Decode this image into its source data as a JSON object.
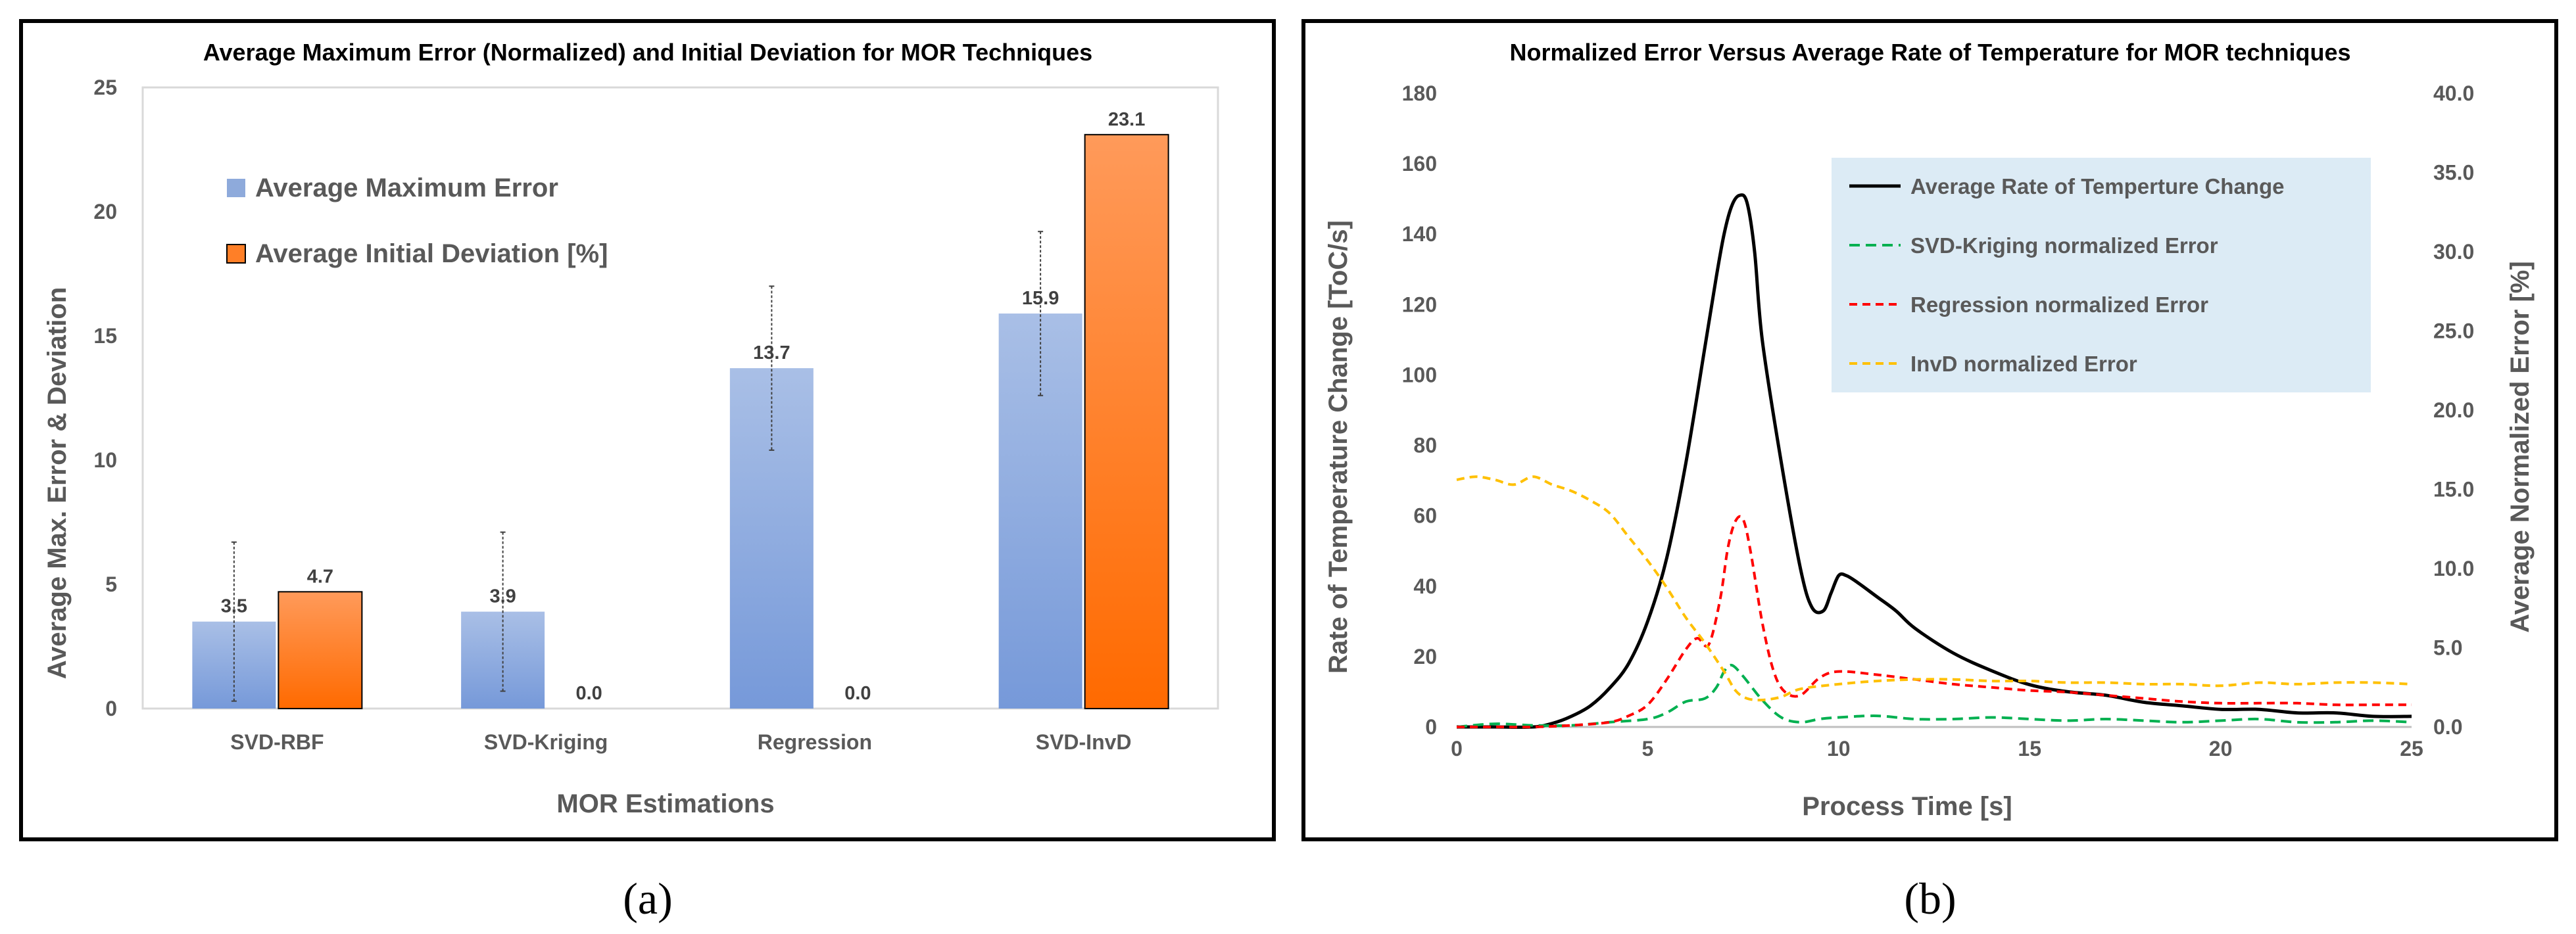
{
  "panel_captions": [
    "(a)",
    "(b)"
  ],
  "chart_data": [
    {
      "type": "bar",
      "title": "Average Maximum Error (Normalized) and Initial Deviation for MOR Techniques",
      "xlabel": "MOR Estimations",
      "ylabel": "Average Max. Error & Deviation",
      "categories": [
        "SVD-RBF",
        "SVD-Kriging",
        "Regression",
        "SVD-InvD"
      ],
      "ylim": [
        0,
        25
      ],
      "yticks": [
        "0",
        "5",
        "10",
        "15",
        "20",
        "25"
      ],
      "grid": false,
      "legend_position": "top-left",
      "series": [
        {
          "name": "Average Maximum Error",
          "values": [
            3.5,
            3.9,
            13.7,
            15.9
          ],
          "labels": [
            "3.5",
            "3.9",
            "13.7",
            "15.9"
          ],
          "error": [
            3.2,
            3.2,
            3.3,
            3.3
          ],
          "color": "#8eaadb"
        },
        {
          "name": "Average Initial Deviation [%]",
          "values": [
            4.7,
            0.0,
            0.0,
            23.1
          ],
          "labels": [
            "4.7",
            "0.0",
            "0.0",
            "23.1"
          ],
          "color": "#ff7f27"
        }
      ]
    },
    {
      "type": "line",
      "title": "Normalized Error Versus Average Rate of Temperature for MOR techniques",
      "xlabel": "Process Time [s]",
      "ylabel": "Rate of Temperature Change [ToC/s]",
      "y2label": "Average Normalized Error [%]",
      "xlim": [
        0,
        25
      ],
      "ylim": [
        0,
        180
      ],
      "y2lim": [
        0,
        40
      ],
      "xticks": [
        "0",
        "5",
        "10",
        "15",
        "20",
        "25"
      ],
      "yticks": [
        "0",
        "20",
        "40",
        "60",
        "80",
        "100",
        "120",
        "140",
        "160",
        "180"
      ],
      "y2ticks": [
        "0.0",
        "5.0",
        "10.0",
        "15.0",
        "20.0",
        "25.0",
        "30.0",
        "35.0",
        "40.0"
      ],
      "legend_position": "top-right",
      "series": [
        {
          "name": "Average Rate of Temperture Change",
          "axis": "left",
          "color": "#000000",
          "style": "solid",
          "x": [
            0,
            1,
            2,
            2.5,
            3,
            3.5,
            4,
            4.5,
            5,
            5.5,
            6,
            6.5,
            6.8,
            7,
            7.2,
            7.4,
            7.6,
            7.8,
            8,
            8.5,
            9,
            9.3,
            9.6,
            9.8,
            10,
            10.2,
            10.5,
            11,
            11.5,
            12,
            13,
            14,
            15,
            16,
            17,
            18,
            19,
            20,
            21,
            22,
            23,
            24,
            25
          ],
          "y": [
            0,
            0,
            0,
            1,
            3,
            6,
            11,
            18,
            30,
            48,
            75,
            108,
            128,
            140,
            148,
            151,
            149,
            135,
            110,
            75,
            45,
            34,
            33,
            38,
            43,
            43,
            41,
            37,
            33,
            28,
            21,
            16,
            12,
            10,
            9,
            7,
            6,
            5,
            5,
            4,
            4,
            3,
            3
          ]
        },
        {
          "name": "SVD-Kriging normalized Error",
          "axis": "right",
          "color": "#00b050",
          "style": "dashed",
          "x": [
            0,
            1,
            2,
            3,
            4,
            5,
            5.5,
            6,
            6.5,
            6.8,
            7,
            7.2,
            7.5,
            8,
            8.5,
            9,
            9.5,
            10,
            11,
            12,
            13,
            14,
            15,
            16,
            17,
            18,
            19,
            20,
            21,
            22,
            23,
            24,
            25
          ],
          "y": [
            0,
            0.2,
            0.1,
            0.1,
            0.3,
            0.5,
            0.9,
            1.6,
            1.8,
            2.5,
            3.5,
            3.9,
            3.2,
            1.7,
            0.6,
            0.3,
            0.5,
            0.6,
            0.7,
            0.5,
            0.5,
            0.6,
            0.5,
            0.4,
            0.5,
            0.4,
            0.3,
            0.4,
            0.5,
            0.3,
            0.3,
            0.4,
            0.3
          ]
        },
        {
          "name": "Regression normalized Error",
          "axis": "right",
          "color": "#ff0000",
          "style": "dashed",
          "x": [
            0,
            1,
            2,
            3,
            4,
            4.5,
            5,
            5.5,
            6,
            6.3,
            6.6,
            6.9,
            7.1,
            7.3,
            7.5,
            7.7,
            8,
            8.3,
            8.6,
            9,
            9.5,
            10,
            11,
            12,
            13,
            14,
            15,
            16,
            17,
            18,
            19,
            20,
            21,
            22,
            23,
            24,
            25
          ],
          "y": [
            0,
            0,
            0,
            0.1,
            0.3,
            0.7,
            1.4,
            3.0,
            4.9,
            5.6,
            5.2,
            8.1,
            11.3,
            13.0,
            13.1,
            11.0,
            6.6,
            3.5,
            2.2,
            2.0,
            3.1,
            3.5,
            3.3,
            3.0,
            2.7,
            2.5,
            2.3,
            2.2,
            2.0,
            1.8,
            1.6,
            1.5,
            1.5,
            1.5,
            1.4,
            1.4,
            1.4
          ]
        },
        {
          "name": "InvD normalized Error",
          "axis": "right",
          "color": "#ffc000",
          "style": "dashed",
          "x": [
            0,
            0.5,
            1,
            1.5,
            2,
            2.5,
            3,
            3.5,
            4,
            4.5,
            5,
            5.5,
            6,
            6.5,
            7,
            7.3,
            7.6,
            8,
            8.5,
            9,
            10,
            11,
            12,
            13,
            14,
            15,
            16,
            17,
            18,
            19,
            20,
            21,
            22,
            23,
            24,
            25
          ],
          "y": [
            15.6,
            15.8,
            15.6,
            15.3,
            15.8,
            15.3,
            14.9,
            14.3,
            13.5,
            12.0,
            10.5,
            8.8,
            6.9,
            5.3,
            3.5,
            2.3,
            1.8,
            1.7,
            1.9,
            2.4,
            2.7,
            2.9,
            3.0,
            3.0,
            2.9,
            2.9,
            2.8,
            2.8,
            2.7,
            2.7,
            2.6,
            2.8,
            2.7,
            2.8,
            2.8,
            2.7
          ]
        }
      ]
    }
  ]
}
